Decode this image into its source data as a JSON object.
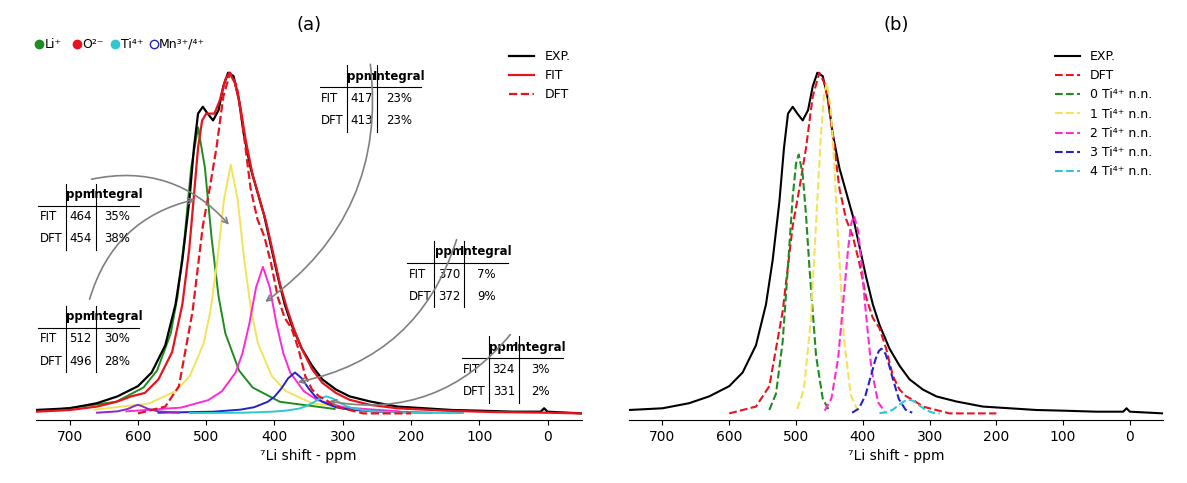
{
  "chart_data": [
    {
      "type": "line",
      "title": "(a)",
      "x_label": "⁷Li shift - ppm",
      "xlim": [
        750,
        -50
      ],
      "xticks": [
        700,
        600,
        500,
        400,
        300,
        200,
        100,
        0
      ],
      "ylim": [
        -0.02,
        1.1
      ],
      "tick_labels": "x",
      "legend": "upper right",
      "species": [
        {
          "label": "Li⁺",
          "color": "#1e8c1e",
          "marker": "circle"
        },
        {
          "label": "O²⁻",
          "color": "#e6141e",
          "marker": "circle"
        },
        {
          "label": "Ti⁴⁺",
          "color": "#2ec8d2",
          "marker": "circle"
        },
        {
          "label": "Mn³⁺/⁴⁺",
          "color": "#2323c8",
          "marker": "open_circle"
        }
      ],
      "table_header": [
        "ppm",
        "Integral"
      ],
      "table_rows": [
        "FIT",
        "DFT"
      ],
      "series": [
        {
          "name": "EXP.",
          "color": "#000000",
          "line_style": "solid",
          "x": [
            750,
            700,
            660,
            630,
            600,
            580,
            560,
            545,
            535,
            525,
            518,
            512,
            505,
            498,
            490,
            482,
            475,
            468,
            460,
            452,
            445,
            435,
            425,
            415,
            405,
            395,
            385,
            375,
            360,
            345,
            330,
            310,
            290,
            260,
            220,
            180,
            140,
            100,
            50,
            10,
            5,
            0,
            -50
          ],
          "values": [
            0.01,
            0.015,
            0.03,
            0.05,
            0.08,
            0.12,
            0.2,
            0.32,
            0.45,
            0.62,
            0.78,
            0.88,
            0.9,
            0.88,
            0.86,
            0.89,
            0.96,
            1.0,
            0.99,
            0.92,
            0.82,
            0.72,
            0.65,
            0.58,
            0.49,
            0.4,
            0.32,
            0.26,
            0.19,
            0.14,
            0.1,
            0.07,
            0.05,
            0.035,
            0.02,
            0.015,
            0.01,
            0.008,
            0.005,
            0.005,
            0.015,
            0.005,
            0.0
          ]
        },
        {
          "name": "FIT",
          "color": "#e6141e",
          "line_style": "solid",
          "x": [
            750,
            700,
            660,
            630,
            610,
            600,
            590,
            570,
            550,
            535,
            525,
            518,
            512,
            506,
            500,
            494,
            488,
            480,
            472,
            466,
            458,
            450,
            442,
            432,
            422,
            412,
            402,
            392,
            382,
            372,
            360,
            345,
            330,
            310,
            290,
            260,
            220,
            150,
            80,
            0,
            -50
          ],
          "values": [
            0.005,
            0.01,
            0.02,
            0.035,
            0.05,
            0.055,
            0.06,
            0.1,
            0.18,
            0.32,
            0.48,
            0.64,
            0.78,
            0.86,
            0.88,
            0.88,
            0.88,
            0.92,
            0.98,
            1.0,
            0.97,
            0.9,
            0.8,
            0.7,
            0.63,
            0.56,
            0.47,
            0.38,
            0.31,
            0.25,
            0.19,
            0.13,
            0.09,
            0.06,
            0.04,
            0.025,
            0.015,
            0.008,
            0.004,
            0.002,
            0.0
          ]
        },
        {
          "name": "DFT",
          "color": "#e6141e",
          "line_style": "dashed",
          "x": [
            600,
            560,
            540,
            520,
            505,
            495,
            485,
            475,
            465,
            455,
            445,
            435,
            425,
            415,
            405,
            395,
            385,
            375,
            365,
            355,
            345,
            335,
            325,
            310,
            290,
            270,
            200
          ],
          "values": [
            0.0,
            0.02,
            0.08,
            0.3,
            0.55,
            0.66,
            0.78,
            0.93,
            1.0,
            0.96,
            0.82,
            0.66,
            0.57,
            0.52,
            0.44,
            0.34,
            0.28,
            0.25,
            0.19,
            0.11,
            0.07,
            0.05,
            0.04,
            0.02,
            0.01,
            0.0,
            0.0
          ]
        }
      ],
      "components": [
        {
          "color": "#1e8c1e",
          "line_style": "solid",
          "x": [
            712,
            632,
            592,
            572,
            552,
            542,
            532,
            522,
            512,
            502,
            492,
            482,
            472,
            452,
            432,
            392,
            312
          ],
          "values": [
            0.013,
            0.034,
            0.076,
            0.126,
            0.235,
            0.344,
            0.512,
            0.722,
            0.84,
            0.722,
            0.512,
            0.344,
            0.235,
            0.126,
            0.076,
            0.034,
            0.013
          ],
          "table": {
            "ppm": [
              512,
              496
            ],
            "integral": [
              {
                "value": 30,
                "label": "30%"
              },
              {
                "value": 28,
                "label": "28%"
              }
            ]
          }
        },
        {
          "color": "#f2e35a",
          "line_style": "solid",
          "x": [
            664,
            584,
            544,
            524,
            504,
            494,
            484,
            474,
            464,
            454,
            444,
            434,
            424,
            404,
            384,
            344,
            264
          ],
          "values": [
            0.011,
            0.029,
            0.066,
            0.11,
            0.204,
            0.299,
            0.445,
            0.628,
            0.73,
            0.628,
            0.445,
            0.299,
            0.204,
            0.11,
            0.066,
            0.029,
            0.011
          ],
          "table": {
            "ppm": [
              464,
              454
            ],
            "integral": [
              {
                "value": 35,
                "label": "35%"
              },
              {
                "value": 38,
                "label": "38%"
              }
            ]
          }
        },
        {
          "color": "#ff2ad4",
          "line_style": "solid",
          "x": [
            617,
            537,
            497,
            477,
            457,
            447,
            437,
            427,
            417,
            407,
            397,
            387,
            377,
            357,
            337,
            297,
            217
          ],
          "values": [
            0.006,
            0.017,
            0.039,
            0.065,
            0.12,
            0.176,
            0.262,
            0.37,
            0.43,
            0.37,
            0.262,
            0.176,
            0.12,
            0.065,
            0.039,
            0.017,
            0.006
          ],
          "table": {
            "ppm": [
              417,
              413
            ],
            "integral": [
              {
                "value": 23,
                "label": "23%"
              },
              {
                "value": 23,
                "label": "23%"
              }
            ]
          }
        },
        {
          "color": "#2323c8",
          "line_style": "solid",
          "x": [
            570,
            490,
            450,
            430,
            410,
            400,
            390,
            380,
            370,
            360,
            350,
            340,
            330,
            310,
            290,
            250,
            170
          ],
          "values": [
            0.002,
            0.005,
            0.011,
            0.018,
            0.034,
            0.049,
            0.073,
            0.103,
            0.12,
            0.103,
            0.073,
            0.049,
            0.034,
            0.018,
            0.011,
            0.005,
            0.002
          ],
          "table": {
            "ppm": [
              370,
              372
            ],
            "integral": [
              {
                "value": 7,
                "label": "7%"
              },
              {
                "value": 9,
                "label": "9%"
              }
            ]
          }
        },
        {
          "color": "#2ec8d2",
          "line_style": "solid",
          "x": [
            524,
            444,
            404,
            384,
            364,
            354,
            344,
            334,
            324,
            314,
            304,
            294,
            284,
            264,
            244,
            204,
            124
          ],
          "values": [
            0.001,
            0.002,
            0.005,
            0.008,
            0.014,
            0.021,
            0.031,
            0.043,
            0.05,
            0.043,
            0.031,
            0.021,
            0.014,
            0.008,
            0.005,
            0.002,
            0.001
          ],
          "table": {
            "ppm": [
              324,
              331
            ],
            "integral": [
              {
                "value": 3,
                "label": "3%"
              },
              {
                "value": 2,
                "label": "2%"
              }
            ]
          }
        },
        {
          "color": "#8c28c8",
          "line_style": "solid",
          "x": [
            660,
            630,
            615,
            605,
            600,
            595,
            585,
            570,
            540
          ],
          "values": [
            0.002,
            0.006,
            0.013,
            0.022,
            0.025,
            0.022,
            0.013,
            0.006,
            0.002
          ]
        }
      ]
    },
    {
      "type": "line",
      "title": "(b)",
      "x_label": "⁷Li shift - ppm",
      "xlim": [
        750,
        -50
      ],
      "xticks": [
        700,
        600,
        500,
        400,
        300,
        200,
        100,
        0
      ],
      "ylim": [
        -0.02,
        1.1
      ],
      "tick_labels": "x",
      "legend": "upper right",
      "series": [
        {
          "name": "EXP.",
          "color": "#000000",
          "line_style": "solid",
          "x": [
            750,
            700,
            660,
            630,
            600,
            580,
            560,
            545,
            535,
            525,
            518,
            512,
            505,
            498,
            490,
            482,
            475,
            468,
            460,
            452,
            445,
            435,
            425,
            415,
            405,
            395,
            385,
            375,
            360,
            345,
            330,
            310,
            290,
            260,
            220,
            180,
            140,
            100,
            50,
            10,
            5,
            0,
            -50
          ],
          "values": [
            0.01,
            0.015,
            0.03,
            0.05,
            0.08,
            0.12,
            0.2,
            0.32,
            0.45,
            0.62,
            0.78,
            0.88,
            0.9,
            0.88,
            0.86,
            0.89,
            0.96,
            1.0,
            0.99,
            0.92,
            0.82,
            0.72,
            0.65,
            0.58,
            0.49,
            0.4,
            0.32,
            0.26,
            0.19,
            0.14,
            0.1,
            0.07,
            0.05,
            0.035,
            0.02,
            0.015,
            0.01,
            0.008,
            0.005,
            0.005,
            0.015,
            0.005,
            0.0
          ]
        },
        {
          "name": "DFT",
          "color": "#e6141e",
          "line_style": "dashed",
          "x": [
            600,
            560,
            540,
            520,
            505,
            495,
            485,
            475,
            465,
            455,
            445,
            435,
            425,
            415,
            405,
            395,
            385,
            375,
            365,
            355,
            345,
            335,
            325,
            310,
            290,
            270,
            200
          ],
          "values": [
            0.0,
            0.02,
            0.08,
            0.3,
            0.55,
            0.66,
            0.78,
            0.93,
            1.0,
            0.96,
            0.82,
            0.66,
            0.57,
            0.52,
            0.44,
            0.34,
            0.28,
            0.25,
            0.19,
            0.11,
            0.07,
            0.05,
            0.04,
            0.02,
            0.01,
            0.0,
            0.0
          ]
        },
        {
          "name": "0 Ti⁴⁺ n.n.",
          "color": "#1e8c1e",
          "line_style": "dashed",
          "x": [
            540,
            530,
            520,
            510,
            505,
            500,
            496,
            490,
            485,
            480,
            470,
            460,
            450
          ],
          "values": [
            0.01,
            0.058,
            0.211,
            0.492,
            0.635,
            0.733,
            0.76,
            0.701,
            0.581,
            0.43,
            0.169,
            0.043,
            0.007
          ]
        },
        {
          "name": "1 Ti⁴⁺ n.n.",
          "color": "#f2e35a",
          "line_style": "dashed",
          "x": [
            498,
            488,
            478,
            468,
            463,
            458,
            454,
            448,
            443,
            438,
            428,
            418,
            408
          ],
          "values": [
            0.013,
            0.074,
            0.27,
            0.628,
            0.81,
            0.936,
            0.97,
            0.895,
            0.741,
            0.549,
            0.215,
            0.054,
            0.009
          ]
        },
        {
          "name": "2 Ti⁴⁺ n.n.",
          "color": "#ff2ad4",
          "line_style": "dashed",
          "x": [
            457,
            447,
            437,
            427,
            422,
            417,
            413,
            407,
            402,
            397,
            387,
            377,
            367
          ],
          "values": [
            0.008,
            0.044,
            0.161,
            0.375,
            0.484,
            0.56,
            0.58,
            0.535,
            0.443,
            0.328,
            0.129,
            0.032,
            0.005
          ]
        },
        {
          "name": "3 Ti⁴⁺ n.n.",
          "color": "#2323c8",
          "line_style": "dashed",
          "x": [
            416,
            406,
            396,
            386,
            381,
            376,
            372,
            366,
            361,
            356,
            346,
            336,
            326
          ],
          "values": [
            0.002,
            0.014,
            0.053,
            0.123,
            0.159,
            0.183,
            0.19,
            0.175,
            0.145,
            0.108,
            0.042,
            0.011,
            0.002
          ]
        },
        {
          "name": "4 Ti⁴⁺ n.n.",
          "color": "#2ec8d2",
          "line_style": "dashed",
          "x": [
            375,
            365,
            355,
            345,
            340,
            335,
            331,
            325,
            320,
            315,
            305,
            295,
            285
          ],
          "values": [
            0.001,
            0.003,
            0.011,
            0.026,
            0.033,
            0.039,
            0.04,
            0.037,
            0.031,
            0.023,
            0.009,
            0.002,
            0.0
          ]
        }
      ]
    }
  ]
}
